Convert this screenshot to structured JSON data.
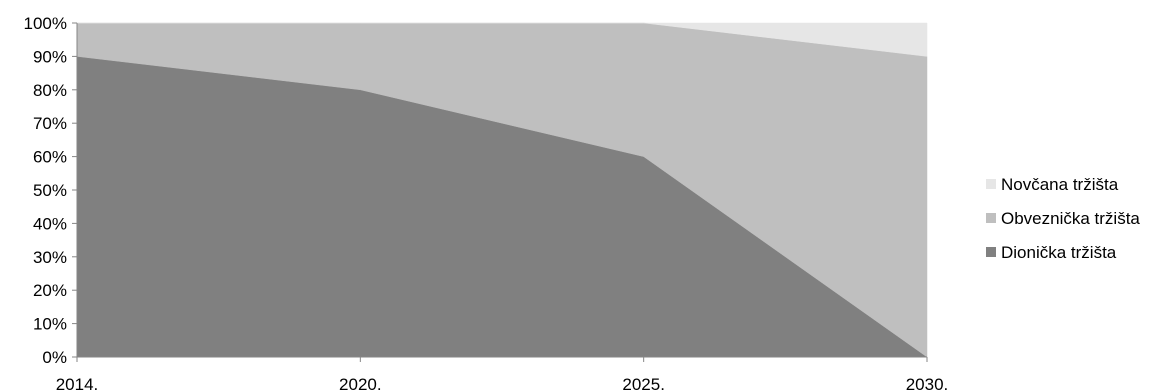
{
  "chart_data": {
    "type": "area",
    "stacked": "percent",
    "categories": [
      "2014.",
      "2020.",
      "2025.",
      "2030."
    ],
    "series": [
      {
        "name": "Dionička tržišta",
        "values": [
          90,
          80,
          60,
          0
        ],
        "color": "#808080"
      },
      {
        "name": "Obveznička tržišta",
        "values": [
          10,
          20,
          40,
          90
        ],
        "color": "#bfbfbf"
      },
      {
        "name": "Novčana tržišta",
        "values": [
          0,
          0,
          0,
          10
        ],
        "color": "#e6e6e6"
      }
    ],
    "y_ticks": [
      "0%",
      "10%",
      "20%",
      "30%",
      "40%",
      "50%",
      "60%",
      "70%",
      "80%",
      "90%",
      "100%"
    ],
    "ylim": [
      0,
      100
    ],
    "grid": false,
    "legend_position": "right"
  }
}
